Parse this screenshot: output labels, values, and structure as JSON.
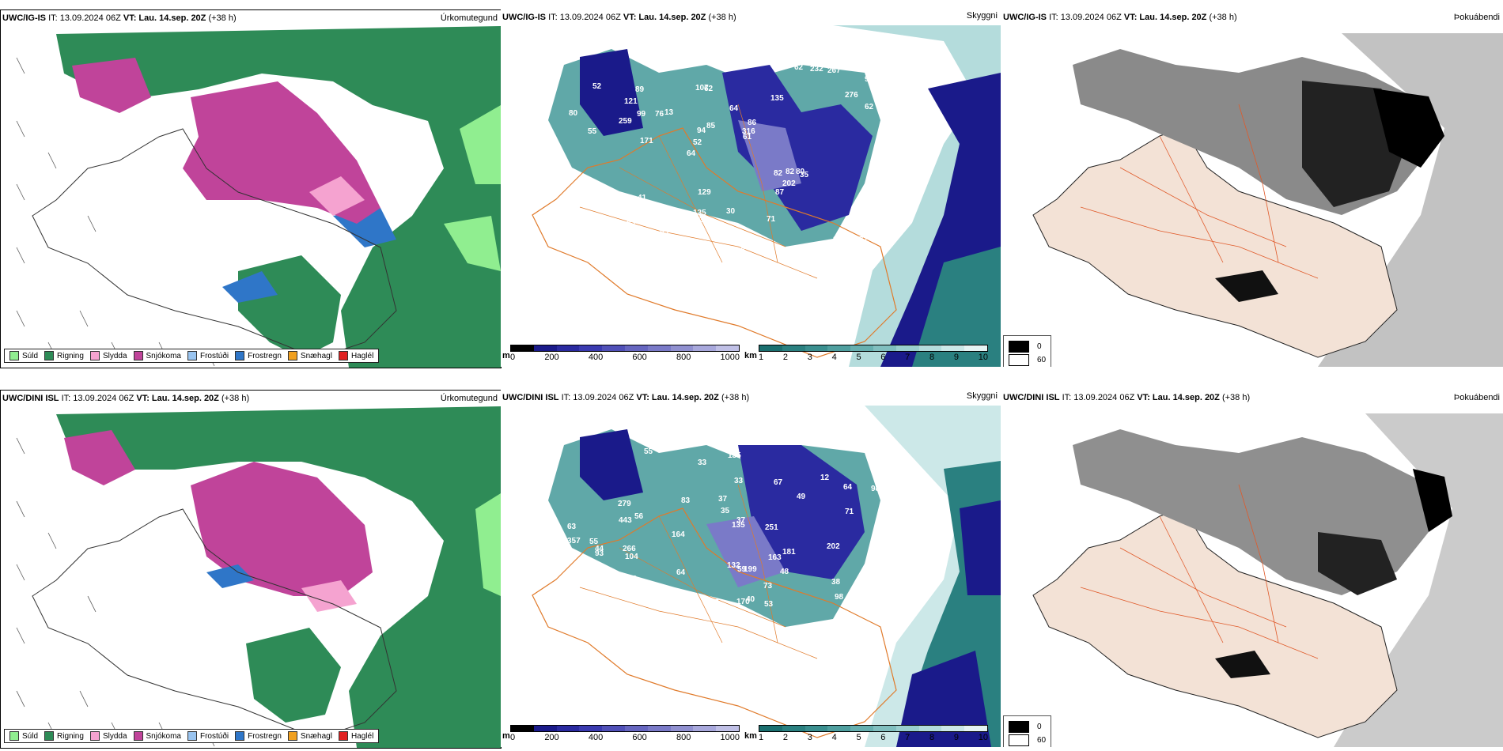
{
  "rows": [
    {
      "model": "UWC/IG-IS",
      "run_info": "IT: 13.09.2024 06Z",
      "valid_label": "VT: Lau. 14.sep. 20Z",
      "lead": "(+38 h)",
      "ceiling_labels": [
        "72",
        "55",
        "92",
        "64",
        "135",
        "16",
        "107",
        "64",
        "60",
        "13",
        "45",
        "53",
        "62",
        "86",
        "35",
        "52",
        "30",
        "33",
        "82",
        "62",
        "52",
        "135",
        "94",
        "89",
        "62",
        "41",
        "33",
        "57",
        "80",
        "312",
        "76",
        "259",
        "87",
        "77",
        "212",
        "316",
        "31",
        "36",
        "61",
        "36",
        "276",
        "254",
        "202",
        "71",
        "72",
        "102",
        "11",
        "30",
        "267",
        "227",
        "171",
        "80",
        "121",
        "232",
        "92",
        "90",
        "96",
        "85",
        "65",
        "129",
        "55",
        "82",
        "99",
        "67"
      ],
      "precip_title": "Úrkomutegund",
      "ceiling_title": "Skyggni",
      "fog_title": "Þokuábendi"
    },
    {
      "model": "UWC/DINI ISL",
      "run_info": "IT: 13.09.2024 06Z",
      "valid_label": "VT: Lau. 14.sep. 20Z",
      "lead": "(+38 h)",
      "ceiling_labels": [
        "110",
        "64",
        "55",
        "12",
        "59",
        "56",
        "104",
        "62",
        "64",
        "49",
        "55",
        "131",
        "48",
        "135",
        "109",
        "43",
        "98",
        "63",
        "43",
        "134",
        "53",
        "66",
        "33",
        "37",
        "35",
        "39",
        "44",
        "230",
        "33",
        "181",
        "279",
        "299",
        "40",
        "132",
        "38",
        "93",
        "98",
        "251",
        "67",
        "202",
        "212",
        "135",
        "167",
        "266",
        "357",
        "443",
        "163",
        "170",
        "64",
        "73",
        "83",
        "80",
        "37",
        "71",
        "164",
        "199"
      ],
      "precip_title": "Úrkomutegund",
      "ceiling_title": "Skyggni",
      "fog_title": "Þokuábendi"
    }
  ],
  "precip_legend": [
    {
      "label": "Súld",
      "color": "#90ee90"
    },
    {
      "label": "Rigning",
      "color": "#2e8b57"
    },
    {
      "label": "Slydda",
      "color": "#f5a3d0"
    },
    {
      "label": "Snjókoma",
      "color": "#c0449a"
    },
    {
      "label": "Frostúði",
      "color": "#99c4f0"
    },
    {
      "label": "Frostregn",
      "color": "#2f76c8"
    },
    {
      "label": "Snæhagl",
      "color": "#f0a020"
    },
    {
      "label": "Haglél",
      "color": "#e02020"
    }
  ],
  "ceiling_scale": {
    "unit": "m",
    "ticks": [
      "0",
      "200",
      "400",
      "600",
      "800",
      "1000"
    ],
    "colors": [
      "#000000",
      "#1a1a8a",
      "#2a2aa0",
      "#3a3ab0",
      "#5050b8",
      "#6666c0",
      "#7a7ac8",
      "#9090d0",
      "#a8a8dc",
      "#c0c0e6"
    ]
  },
  "visibility_scale": {
    "unit": "km",
    "ticks": [
      "1",
      "2",
      "3",
      "4",
      "5",
      "6",
      "7",
      "8",
      "9",
      "10"
    ],
    "colors": [
      "#1a6f6f",
      "#2a8080",
      "#3a8f8f",
      "#4f9f9f",
      "#66afaf",
      "#80bfbf",
      "#9acfcf",
      "#b4dcdc",
      "#cce8e8",
      "#e6f4f4"
    ]
  },
  "fog_scale": [
    {
      "label": "0",
      "color": "#000000"
    },
    {
      "label": "60",
      "color": "#ffffff"
    }
  ]
}
